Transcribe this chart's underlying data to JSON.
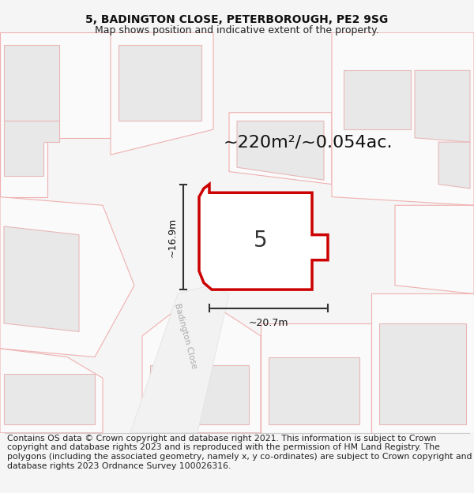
{
  "title_line1": "5, BADINGTON CLOSE, PETERBOROUGH, PE2 9SG",
  "title_line2": "Map shows position and indicative extent of the property.",
  "area_label": "~220m²/~0.054ac.",
  "number_label": "5",
  "width_label": "~20.7m",
  "height_label": "~16.9m",
  "street_label": "Badington Close",
  "footer_text": "Contains OS data © Crown copyright and database right 2021. This information is subject to Crown copyright and database rights 2023 and is reproduced with the permission of HM Land Registry. The polygons (including the associated geometry, namely x, y co-ordinates) are subject to Crown copyright and database rights 2023 Ordnance Survey 100026316.",
  "bg_color": "#f5f5f5",
  "map_bg": "#ffffff",
  "building_fill": "#e8e8e8",
  "building_edge": "#e8b8b8",
  "parcel_edge": "#f0b0b0",
  "highlight_fill": "#ffffff",
  "highlight_stroke": "#cc0000",
  "dim_line_color": "#333333",
  "title_fontsize": 10,
  "subtitle_fontsize": 9,
  "footer_fontsize": 7.8,
  "area_fontsize": 16,
  "number_fontsize": 20,
  "dim_fontsize": 9,
  "street_fontsize": 7.5
}
